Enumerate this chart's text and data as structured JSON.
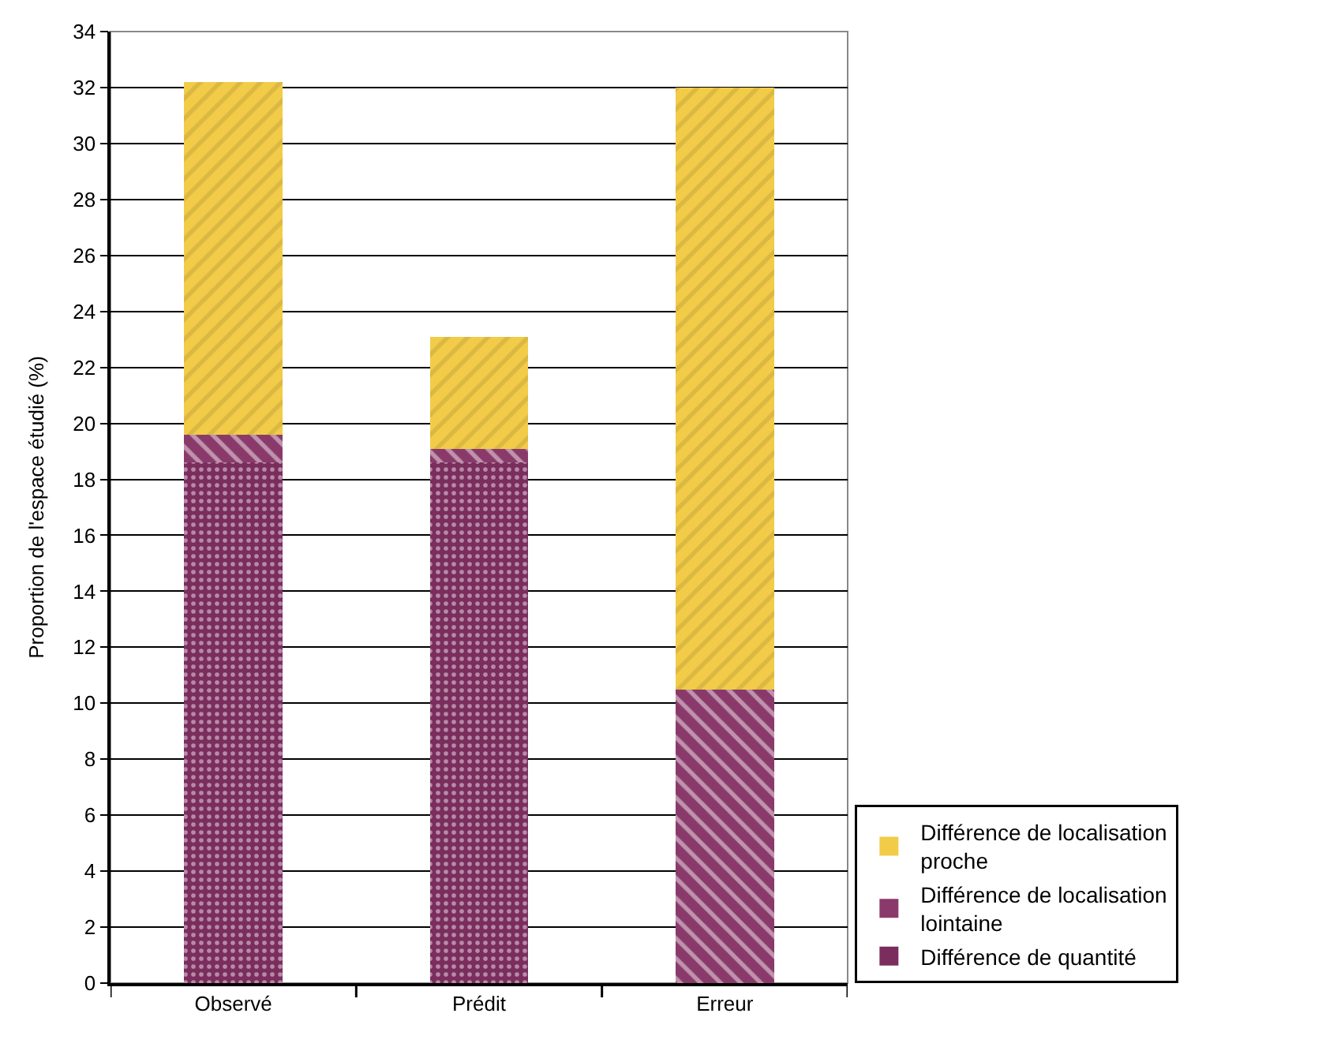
{
  "chart_data": {
    "type": "bar",
    "stacked": true,
    "ylabel": "Proportion de l'espace étudié (%)",
    "categories": [
      "Observé",
      "Prédit",
      "Erreur"
    ],
    "series": [
      {
        "name": "Différence de quantité",
        "color": "#7b2d5e",
        "values": [
          18.6,
          18.6,
          0
        ]
      },
      {
        "name": "Différence de localisation lointaine",
        "color": "#8a3a6a",
        "values": [
          1.0,
          0.5,
          10.5
        ]
      },
      {
        "name": "Différence de localisation proche",
        "color": "#f2cc48",
        "values": [
          12.6,
          4.0,
          21.5
        ]
      }
    ],
    "ylim": [
      0,
      34
    ],
    "yticks": [
      0,
      2,
      4,
      6,
      8,
      10,
      12,
      14,
      16,
      18,
      20,
      22,
      24,
      26,
      28,
      30,
      32,
      34
    ],
    "grid": "y",
    "legend": "bottom right"
  }
}
